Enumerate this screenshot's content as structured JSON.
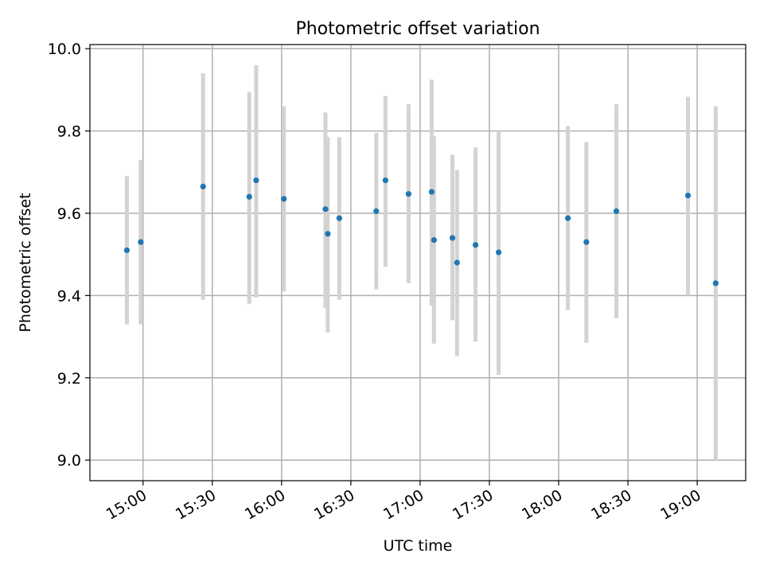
{
  "chart_data": {
    "type": "scatter",
    "title": "Photometric offset variation",
    "xlabel": "UTC time",
    "ylabel": "Photometric offset",
    "xlim": [
      "14:37",
      "19:21"
    ],
    "ylim": [
      8.95,
      10.01
    ],
    "xticks": [
      "15:00",
      "15:30",
      "16:00",
      "16:30",
      "17:00",
      "17:30",
      "18:00",
      "18:30",
      "19:00"
    ],
    "yticks": [
      "9.0",
      "9.2",
      "9.4",
      "9.6",
      "9.8",
      "10.0"
    ],
    "grid": true,
    "colors": {
      "points": "#1f77b4",
      "errorbars": "#d3d3d3",
      "grid": "#b0b0b0"
    },
    "series": [
      {
        "points": [
          {
            "x": "14:53",
            "y": 9.51,
            "low": 9.33,
            "high": 9.69
          },
          {
            "x": "14:59",
            "y": 9.53,
            "low": 9.33,
            "high": 9.73
          },
          {
            "x": "15:26",
            "y": 9.665,
            "low": 9.39,
            "high": 9.94
          },
          {
            "x": "15:46",
            "y": 9.64,
            "low": 9.38,
            "high": 9.895
          },
          {
            "x": "15:49",
            "y": 9.68,
            "low": 9.395,
            "high": 9.96
          },
          {
            "x": "16:01",
            "y": 9.635,
            "low": 9.41,
            "high": 9.86
          },
          {
            "x": "16:19",
            "y": 9.61,
            "low": 9.37,
            "high": 9.845
          },
          {
            "x": "16:20",
            "y": 9.55,
            "low": 9.31,
            "high": 9.785
          },
          {
            "x": "16:25",
            "y": 9.588,
            "low": 9.39,
            "high": 9.785
          },
          {
            "x": "16:41",
            "y": 9.605,
            "low": 9.415,
            "high": 9.795
          },
          {
            "x": "16:45",
            "y": 9.68,
            "low": 9.47,
            "high": 9.885
          },
          {
            "x": "16:55",
            "y": 9.647,
            "low": 9.43,
            "high": 9.865
          },
          {
            "x": "17:05",
            "y": 9.652,
            "low": 9.375,
            "high": 9.925
          },
          {
            "x": "17:06",
            "y": 9.535,
            "low": 9.283,
            "high": 9.787
          },
          {
            "x": "17:14",
            "y": 9.54,
            "low": 9.34,
            "high": 9.742
          },
          {
            "x": "17:16",
            "y": 9.48,
            "low": 9.253,
            "high": 9.705
          },
          {
            "x": "17:24",
            "y": 9.523,
            "low": 9.288,
            "high": 9.76
          },
          {
            "x": "17:34",
            "y": 9.505,
            "low": 9.207,
            "high": 9.8
          },
          {
            "x": "18:04",
            "y": 9.588,
            "low": 9.365,
            "high": 9.812
          },
          {
            "x": "18:12",
            "y": 9.53,
            "low": 9.285,
            "high": 9.773
          },
          {
            "x": "18:25",
            "y": 9.605,
            "low": 9.345,
            "high": 9.865
          },
          {
            "x": "18:56",
            "y": 9.643,
            "low": 9.4,
            "high": 9.883
          },
          {
            "x": "19:08",
            "y": 9.43,
            "low": 9.0,
            "high": 9.86
          }
        ]
      }
    ]
  }
}
